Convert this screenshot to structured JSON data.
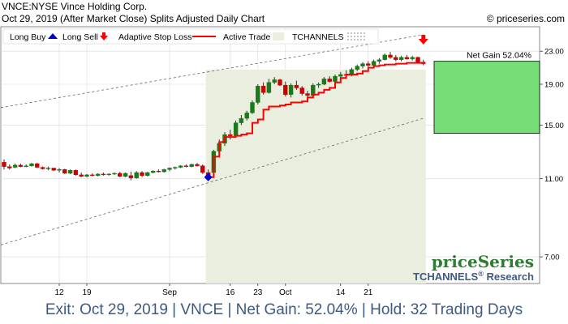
{
  "header": {
    "symbol_line": "VNCE:NYSE Vince Holding Corp.",
    "date_line": "Oct 29, 2019 (After Market Close)  Splits Adjusted Daily Chart",
    "copyright": "© priceseries.com"
  },
  "legend": {
    "long_buy": "Long Buy",
    "long_sell": "Long Sell",
    "adaptive_stop": "Adaptive Stop Loss",
    "active_trade": "Active Trade",
    "tchannels": "TCHANNELS"
  },
  "net_gain_label": "Net Gain 52.04%",
  "brand": {
    "name": "priceSeries",
    "sub": "TCHANNELS",
    "reg": "®",
    "sub2": " Research"
  },
  "footer": "Exit: Oct 29, 2019 | VNCE | Net Gain: 52.04% | Hold: 32 Trading Days",
  "colors": {
    "up": "#1a7a1a",
    "down": "#cc0000",
    "stop": "#ff0000",
    "gain_box": "#77dd77",
    "trade_bg": "#e9eedf",
    "buy_arrow": "#0000cc",
    "sell_arrow": "#ff0000",
    "brand": "#2e7d32",
    "brand_sub": "#3d5a80"
  },
  "chart_data": {
    "type": "candlestick",
    "y_scale": "log",
    "ylim": [
      6.0,
      26.5
    ],
    "y_ticks": [
      7.0,
      11.0,
      15.0,
      19.0,
      23.0
    ],
    "y_tick_labels": [
      "7.00",
      "11.00",
      "15.00",
      "19.00",
      "23.00"
    ],
    "x_ticks": [
      {
        "index": 10,
        "label": "12"
      },
      {
        "index": 15,
        "label": "19"
      },
      {
        "index": 30,
        "label": "Sep"
      },
      {
        "index": 41,
        "label": "16"
      },
      {
        "index": 46,
        "label": "23"
      },
      {
        "index": 51,
        "label": "Oct"
      },
      {
        "index": 61,
        "label": "14"
      },
      {
        "index": 66,
        "label": "21"
      }
    ],
    "grid": true,
    "candles": [
      {
        "o": 12.1,
        "h": 12.3,
        "l": 11.6,
        "c": 11.8
      },
      {
        "o": 11.8,
        "h": 11.95,
        "l": 11.6,
        "c": 11.7
      },
      {
        "o": 11.75,
        "h": 12.0,
        "l": 11.7,
        "c": 11.9
      },
      {
        "o": 11.9,
        "h": 12.0,
        "l": 11.75,
        "c": 11.8
      },
      {
        "o": 11.8,
        "h": 11.95,
        "l": 11.75,
        "c": 11.85
      },
      {
        "o": 11.85,
        "h": 12.05,
        "l": 11.8,
        "c": 12.0
      },
      {
        "o": 12.0,
        "h": 12.05,
        "l": 11.7,
        "c": 11.75
      },
      {
        "o": 11.75,
        "h": 11.8,
        "l": 11.6,
        "c": 11.65
      },
      {
        "o": 11.65,
        "h": 11.8,
        "l": 11.55,
        "c": 11.7
      },
      {
        "o": 11.7,
        "h": 11.7,
        "l": 11.5,
        "c": 11.55
      },
      {
        "o": 11.55,
        "h": 11.7,
        "l": 11.4,
        "c": 11.6
      },
      {
        "o": 11.6,
        "h": 11.65,
        "l": 11.3,
        "c": 11.35
      },
      {
        "o": 11.35,
        "h": 11.6,
        "l": 11.3,
        "c": 11.55
      },
      {
        "o": 11.55,
        "h": 11.6,
        "l": 11.2,
        "c": 11.25
      },
      {
        "o": 11.25,
        "h": 11.4,
        "l": 11.1,
        "c": 11.15
      },
      {
        "o": 11.15,
        "h": 11.3,
        "l": 11.1,
        "c": 11.25
      },
      {
        "o": 11.25,
        "h": 11.35,
        "l": 11.15,
        "c": 11.2
      },
      {
        "o": 11.2,
        "h": 11.35,
        "l": 11.15,
        "c": 11.3
      },
      {
        "o": 11.3,
        "h": 11.4,
        "l": 11.2,
        "c": 11.25
      },
      {
        "o": 11.25,
        "h": 11.35,
        "l": 11.2,
        "c": 11.3
      },
      {
        "o": 11.3,
        "h": 11.4,
        "l": 11.25,
        "c": 11.35
      },
      {
        "o": 11.35,
        "h": 11.45,
        "l": 11.1,
        "c": 11.15
      },
      {
        "o": 11.15,
        "h": 11.4,
        "l": 11.1,
        "c": 11.35
      },
      {
        "o": 11.2,
        "h": 11.45,
        "l": 10.9,
        "c": 11.05
      },
      {
        "o": 11.05,
        "h": 11.5,
        "l": 11.0,
        "c": 11.4
      },
      {
        "o": 11.4,
        "h": 11.5,
        "l": 11.1,
        "c": 11.2
      },
      {
        "o": 11.2,
        "h": 11.45,
        "l": 11.15,
        "c": 11.4
      },
      {
        "o": 11.4,
        "h": 11.55,
        "l": 11.35,
        "c": 11.5
      },
      {
        "o": 11.5,
        "h": 11.6,
        "l": 11.4,
        "c": 11.45
      },
      {
        "o": 11.45,
        "h": 11.65,
        "l": 11.4,
        "c": 11.6
      },
      {
        "o": 11.6,
        "h": 11.75,
        "l": 11.5,
        "c": 11.7
      },
      {
        "o": 11.7,
        "h": 11.8,
        "l": 11.6,
        "c": 11.75
      },
      {
        "o": 11.75,
        "h": 11.9,
        "l": 11.7,
        "c": 11.85
      },
      {
        "o": 11.85,
        "h": 11.95,
        "l": 11.75,
        "c": 11.8
      },
      {
        "o": 11.8,
        "h": 12.0,
        "l": 11.75,
        "c": 11.95
      },
      {
        "o": 11.95,
        "h": 12.05,
        "l": 11.8,
        "c": 11.85
      },
      {
        "o": 11.85,
        "h": 11.95,
        "l": 11.3,
        "c": 11.4
      },
      {
        "o": 11.4,
        "h": 11.6,
        "l": 11.1,
        "c": 11.2
      },
      {
        "o": 11.4,
        "h": 13.0,
        "l": 11.35,
        "c": 12.9
      },
      {
        "o": 12.9,
        "h": 13.8,
        "l": 12.8,
        "c": 13.5
      },
      {
        "o": 13.5,
        "h": 14.4,
        "l": 13.3,
        "c": 14.2
      },
      {
        "o": 14.2,
        "h": 14.6,
        "l": 13.8,
        "c": 14.1
      },
      {
        "o": 14.1,
        "h": 15.4,
        "l": 14.0,
        "c": 15.2
      },
      {
        "o": 15.2,
        "h": 15.9,
        "l": 15.0,
        "c": 15.6
      },
      {
        "o": 15.6,
        "h": 16.3,
        "l": 15.4,
        "c": 16.1
      },
      {
        "o": 16.1,
        "h": 17.3,
        "l": 16.0,
        "c": 17.1
      },
      {
        "o": 17.1,
        "h": 19.0,
        "l": 16.9,
        "c": 18.8
      },
      {
        "o": 18.8,
        "h": 19.2,
        "l": 17.9,
        "c": 18.1
      },
      {
        "o": 18.1,
        "h": 19.6,
        "l": 18.0,
        "c": 19.2
      },
      {
        "o": 19.2,
        "h": 19.8,
        "l": 19.0,
        "c": 19.5
      },
      {
        "o": 19.5,
        "h": 19.6,
        "l": 18.8,
        "c": 18.9
      },
      {
        "o": 18.9,
        "h": 19.3,
        "l": 17.7,
        "c": 17.9
      },
      {
        "o": 17.9,
        "h": 19.1,
        "l": 17.6,
        "c": 18.9
      },
      {
        "o": 18.9,
        "h": 19.4,
        "l": 18.4,
        "c": 18.6
      },
      {
        "o": 18.6,
        "h": 18.8,
        "l": 17.8,
        "c": 18.0
      },
      {
        "o": 18.0,
        "h": 18.3,
        "l": 17.5,
        "c": 17.8
      },
      {
        "o": 17.8,
        "h": 19.1,
        "l": 17.7,
        "c": 18.9
      },
      {
        "o": 18.9,
        "h": 19.2,
        "l": 18.6,
        "c": 19.0
      },
      {
        "o": 19.0,
        "h": 19.8,
        "l": 18.9,
        "c": 19.6
      },
      {
        "o": 19.6,
        "h": 19.9,
        "l": 19.2,
        "c": 19.3
      },
      {
        "o": 19.3,
        "h": 20.1,
        "l": 19.1,
        "c": 19.9
      },
      {
        "o": 19.9,
        "h": 20.4,
        "l": 19.7,
        "c": 20.1
      },
      {
        "o": 20.1,
        "h": 20.6,
        "l": 19.8,
        "c": 20.0
      },
      {
        "o": 20.0,
        "h": 20.9,
        "l": 19.9,
        "c": 20.7
      },
      {
        "o": 20.7,
        "h": 21.3,
        "l": 20.5,
        "c": 21.1
      },
      {
        "o": 21.1,
        "h": 21.6,
        "l": 20.8,
        "c": 21.4
      },
      {
        "o": 21.4,
        "h": 21.7,
        "l": 21.0,
        "c": 21.2
      },
      {
        "o": 21.2,
        "h": 21.9,
        "l": 21.1,
        "c": 21.7
      },
      {
        "o": 21.7,
        "h": 22.1,
        "l": 21.4,
        "c": 21.9
      },
      {
        "o": 21.9,
        "h": 22.7,
        "l": 21.8,
        "c": 22.5
      },
      {
        "o": 22.5,
        "h": 22.9,
        "l": 22.0,
        "c": 22.2
      },
      {
        "o": 22.2,
        "h": 22.5,
        "l": 21.7,
        "c": 21.9
      },
      {
        "o": 21.9,
        "h": 22.4,
        "l": 21.7,
        "c": 22.2
      },
      {
        "o": 22.2,
        "h": 22.5,
        "l": 21.9,
        "c": 22.0
      },
      {
        "o": 22.0,
        "h": 22.4,
        "l": 21.8,
        "c": 22.2
      },
      {
        "o": 22.2,
        "h": 22.3,
        "l": 21.5,
        "c": 21.6
      },
      {
        "o": 21.6,
        "h": 21.9,
        "l": 21.2,
        "c": 21.4
      }
    ],
    "stop_loss": [
      {
        "i": 37,
        "v": 11.1
      },
      {
        "i": 38,
        "v": 12.5
      },
      {
        "i": 39,
        "v": 13.6
      },
      {
        "i": 40,
        "v": 14.0
      },
      {
        "i": 42,
        "v": 14.1
      },
      {
        "i": 43,
        "v": 14.2
      },
      {
        "i": 44,
        "v": 14.3
      },
      {
        "i": 45,
        "v": 15.2
      },
      {
        "i": 46,
        "v": 15.5
      },
      {
        "i": 47,
        "v": 16.4
      },
      {
        "i": 48,
        "v": 16.7
      },
      {
        "i": 50,
        "v": 16.8
      },
      {
        "i": 51,
        "v": 16.9
      },
      {
        "i": 52,
        "v": 17.1
      },
      {
        "i": 54,
        "v": 17.2
      },
      {
        "i": 55,
        "v": 17.6
      },
      {
        "i": 56,
        "v": 17.9
      },
      {
        "i": 57,
        "v": 18.1
      },
      {
        "i": 58,
        "v": 18.4
      },
      {
        "i": 59,
        "v": 18.6
      },
      {
        "i": 60,
        "v": 19.2
      },
      {
        "i": 61,
        "v": 19.7
      },
      {
        "i": 62,
        "v": 20.1
      },
      {
        "i": 63,
        "v": 20.1
      },
      {
        "i": 64,
        "v": 20.2
      },
      {
        "i": 65,
        "v": 20.5
      },
      {
        "i": 66,
        "v": 20.9
      },
      {
        "i": 67,
        "v": 21.1
      },
      {
        "i": 68,
        "v": 21.2
      },
      {
        "i": 69,
        "v": 21.3
      },
      {
        "i": 70,
        "v": 21.3
      },
      {
        "i": 71,
        "v": 21.4
      },
      {
        "i": 72,
        "v": 21.4
      },
      {
        "i": 73,
        "v": 21.5
      },
      {
        "i": 75,
        "v": 21.5
      },
      {
        "i": 76,
        "v": 21.6
      }
    ],
    "channel_upper": [
      {
        "i": 0,
        "v": 16.6
      },
      {
        "i": 76,
        "v": 25.3
      }
    ],
    "channel_lower": [
      {
        "i": 0,
        "v": 7.5
      },
      {
        "i": 76,
        "v": 15.6
      }
    ],
    "channel_mid": [
      {
        "i": 0,
        "v": 11.2
      },
      {
        "i": 76,
        "v": 19.9
      }
    ],
    "active_trade": {
      "start": 37,
      "end": 76
    },
    "buy_marker": {
      "i": 37,
      "v": 11.1
    },
    "sell_marker": {
      "i": 76,
      "v": 24.7
    },
    "gain_box": {
      "entry": 14.3,
      "exit": 21.7
    }
  }
}
